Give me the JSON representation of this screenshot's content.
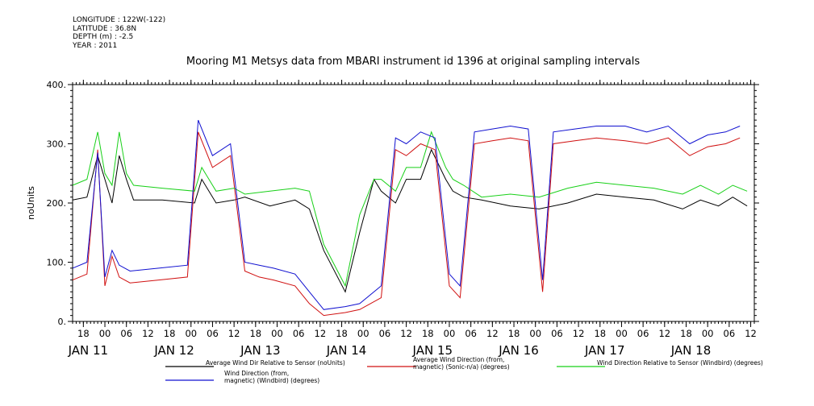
{
  "header": {
    "longitude": "LONGITUDE : 122W(-122)",
    "latitude": "LATITUDE : 36.8N",
    "depth": "DEPTH (m) : -2.5",
    "year": "YEAR : 2011"
  },
  "chart_data": {
    "type": "line",
    "title": "Mooring M1 Metsys data from MBARI instrument id 1396 at original sampling intervals",
    "xlabel": "",
    "ylabel": "noUnits",
    "ylim": [
      0,
      400
    ],
    "xlim_hours": [
      0,
      190
    ],
    "yticks": [
      "0.",
      "100.",
      "200.",
      "300.",
      "400."
    ],
    "xticks_hours": [
      "18",
      "00",
      "06",
      "12",
      "18",
      "00",
      "06",
      "12",
      "18",
      "00",
      "06",
      "12",
      "18",
      "00",
      "06",
      "12",
      "18",
      "00",
      "06",
      "12",
      "18",
      "00",
      "06",
      "12",
      "18",
      "00",
      "06",
      "12",
      "18",
      "00",
      "06",
      "12"
    ],
    "date_labels": [
      "JAN 11",
      "JAN 12",
      "JAN 13",
      "JAN 14",
      "JAN 15",
      "JAN 16",
      "JAN 17",
      "JAN 18"
    ],
    "grid": false,
    "legend_placement": "bottom",
    "series": [
      {
        "name": "Average Wind Dir Relative to Sensor (noUnits)",
        "color": "#000000",
        "points": [
          [
            0,
            205
          ],
          [
            4,
            210
          ],
          [
            7,
            280
          ],
          [
            9,
            240
          ],
          [
            11,
            200
          ],
          [
            13,
            280
          ],
          [
            15,
            240
          ],
          [
            17,
            205
          ],
          [
            25,
            205
          ],
          [
            34,
            200
          ],
          [
            36,
            240
          ],
          [
            40,
            200
          ],
          [
            45,
            205
          ],
          [
            48,
            210
          ],
          [
            55,
            195
          ],
          [
            62,
            205
          ],
          [
            66,
            190
          ],
          [
            70,
            120
          ],
          [
            76,
            50
          ],
          [
            80,
            150
          ],
          [
            84,
            240
          ],
          [
            86,
            220
          ],
          [
            90,
            200
          ],
          [
            93,
            240
          ],
          [
            97,
            240
          ],
          [
            100,
            290
          ],
          [
            104,
            240
          ],
          [
            106,
            220
          ],
          [
            109,
            210
          ],
          [
            114,
            205
          ],
          [
            122,
            195
          ],
          [
            130,
            190
          ],
          [
            138,
            200
          ],
          [
            146,
            215
          ],
          [
            154,
            210
          ],
          [
            162,
            205
          ],
          [
            170,
            190
          ],
          [
            175,
            205
          ],
          [
            180,
            195
          ],
          [
            184,
            210
          ],
          [
            188,
            195
          ]
        ]
      },
      {
        "name": "Average Wind Direction (from, magnetic) (Sonic-n/a) (degrees)",
        "color": "#d01010",
        "points": [
          [
            0,
            70
          ],
          [
            4,
            80
          ],
          [
            7,
            290
          ],
          [
            9,
            60
          ],
          [
            11,
            110
          ],
          [
            13,
            75
          ],
          [
            16,
            65
          ],
          [
            24,
            70
          ],
          [
            32,
            75
          ],
          [
            35,
            320
          ],
          [
            39,
            260
          ],
          [
            44,
            280
          ],
          [
            48,
            85
          ],
          [
            52,
            75
          ],
          [
            56,
            70
          ],
          [
            62,
            60
          ],
          [
            66,
            30
          ],
          [
            70,
            10
          ],
          [
            76,
            15
          ],
          [
            80,
            20
          ],
          [
            86,
            40
          ],
          [
            90,
            290
          ],
          [
            93,
            280
          ],
          [
            97,
            300
          ],
          [
            101,
            290
          ],
          [
            105,
            60
          ],
          [
            108,
            40
          ],
          [
            112,
            300
          ],
          [
            117,
            305
          ],
          [
            122,
            310
          ],
          [
            127,
            305
          ],
          [
            131,
            50
          ],
          [
            134,
            300
          ],
          [
            140,
            305
          ],
          [
            146,
            310
          ],
          [
            154,
            305
          ],
          [
            160,
            300
          ],
          [
            166,
            310
          ],
          [
            172,
            280
          ],
          [
            177,
            295
          ],
          [
            182,
            300
          ],
          [
            186,
            310
          ]
        ]
      },
      {
        "name": "Wind Direction Relative to Sensor (Windbird) (degrees)",
        "color": "#18d018",
        "points": [
          [
            0,
            230
          ],
          [
            4,
            240
          ],
          [
            7,
            320
          ],
          [
            9,
            250
          ],
          [
            11,
            230
          ],
          [
            13,
            320
          ],
          [
            15,
            250
          ],
          [
            17,
            230
          ],
          [
            25,
            225
          ],
          [
            34,
            220
          ],
          [
            36,
            260
          ],
          [
            40,
            220
          ],
          [
            45,
            225
          ],
          [
            48,
            215
          ],
          [
            55,
            220
          ],
          [
            62,
            225
          ],
          [
            66,
            220
          ],
          [
            70,
            130
          ],
          [
            76,
            60
          ],
          [
            80,
            180
          ],
          [
            84,
            240
          ],
          [
            86,
            240
          ],
          [
            90,
            220
          ],
          [
            93,
            260
          ],
          [
            97,
            260
          ],
          [
            100,
            320
          ],
          [
            104,
            260
          ],
          [
            106,
            240
          ],
          [
            109,
            230
          ],
          [
            114,
            210
          ],
          [
            122,
            215
          ],
          [
            130,
            210
          ],
          [
            138,
            225
          ],
          [
            146,
            235
          ],
          [
            154,
            230
          ],
          [
            162,
            225
          ],
          [
            170,
            215
          ],
          [
            175,
            230
          ],
          [
            180,
            215
          ],
          [
            184,
            230
          ],
          [
            188,
            220
          ]
        ]
      },
      {
        "name": "Wind Direction (from, magnetic) (Windbird) (degrees)",
        "color": "#1010d0",
        "points": [
          [
            0,
            90
          ],
          [
            4,
            100
          ],
          [
            7,
            285
          ],
          [
            9,
            75
          ],
          [
            11,
            120
          ],
          [
            13,
            95
          ],
          [
            16,
            85
          ],
          [
            24,
            90
          ],
          [
            32,
            95
          ],
          [
            35,
            340
          ],
          [
            39,
            280
          ],
          [
            44,
            300
          ],
          [
            48,
            100
          ],
          [
            52,
            95
          ],
          [
            56,
            90
          ],
          [
            62,
            80
          ],
          [
            66,
            50
          ],
          [
            70,
            20
          ],
          [
            76,
            25
          ],
          [
            80,
            30
          ],
          [
            86,
            60
          ],
          [
            90,
            310
          ],
          [
            93,
            300
          ],
          [
            97,
            320
          ],
          [
            101,
            310
          ],
          [
            105,
            80
          ],
          [
            108,
            60
          ],
          [
            112,
            320
          ],
          [
            117,
            325
          ],
          [
            122,
            330
          ],
          [
            127,
            325
          ],
          [
            131,
            70
          ],
          [
            134,
            320
          ],
          [
            140,
            325
          ],
          [
            146,
            330
          ],
          [
            154,
            330
          ],
          [
            160,
            320
          ],
          [
            166,
            330
          ],
          [
            172,
            300
          ],
          [
            177,
            315
          ],
          [
            182,
            320
          ],
          [
            186,
            330
          ]
        ]
      }
    ]
  }
}
